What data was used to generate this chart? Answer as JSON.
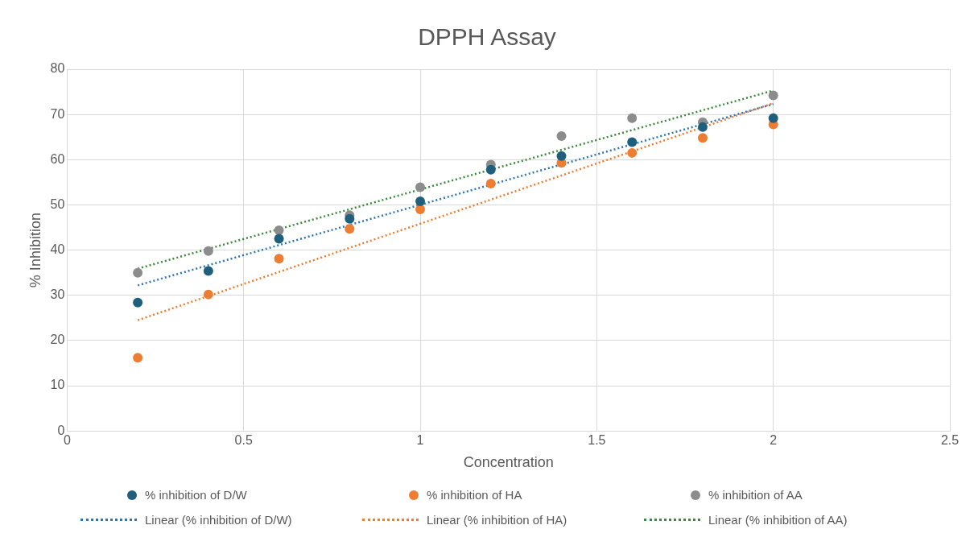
{
  "chart_data": {
    "type": "scatter",
    "title": "DPPH Assay",
    "xlabel": "Concentration",
    "ylabel": "% Inhibition",
    "xlim": [
      0,
      2.5
    ],
    "xticks": [
      0,
      0.5,
      1,
      1.5,
      2,
      2.5
    ],
    "ylim": [
      0,
      80
    ],
    "yticks": [
      0,
      10,
      20,
      30,
      40,
      50,
      60,
      70,
      80
    ],
    "grid": true,
    "legend": "bottom",
    "marker": "circle",
    "series": [
      {
        "name": "% inhibition of D/W",
        "color": "#1f5f7e",
        "x": [
          0.2,
          0.4,
          0.6,
          0.8,
          1,
          1.2,
          1.4,
          1.6,
          1.8,
          2
        ],
        "values": [
          28.4,
          35.4,
          42.5,
          46.9,
          50.8,
          57.8,
          60.8,
          63.9,
          67.2,
          69.2
        ]
      },
      {
        "name": "% inhibition of HA",
        "color": "#ed7d31",
        "x": [
          0.2,
          0.4,
          0.6,
          0.8,
          1,
          1.2,
          1.4,
          1.6,
          1.8,
          2
        ],
        "values": [
          16.2,
          30.2,
          38.1,
          44.7,
          49.0,
          54.7,
          59.3,
          61.5,
          64.8,
          67.8
        ]
      },
      {
        "name": "% inhibition of AA",
        "color": "#8c8c8c",
        "x": [
          0.2,
          0.4,
          0.6,
          0.8,
          1,
          1.2,
          1.4,
          1.6,
          1.8,
          2
        ],
        "values": [
          35.0,
          39.8,
          44.4,
          47.7,
          53.9,
          58.9,
          65.2,
          69.2,
          68.3,
          74.2
        ]
      },
      {
        "name": "Linear (% inhibition of D/W)",
        "type": "line",
        "line_style": "dotted",
        "marker": "none",
        "color": "#2e75b6",
        "x": [
          0.2,
          2
        ],
        "values": [
          32.2,
          72.3
        ]
      },
      {
        "name": "Linear (% inhibition of HA)",
        "type": "line",
        "line_style": "dotted",
        "marker": "none",
        "color": "#ed7d31",
        "x": [
          0.2,
          2
        ],
        "values": [
          24.5,
          72.5
        ]
      },
      {
        "name": "Linear (% inhibition of AA)",
        "type": "line",
        "line_style": "dotted",
        "marker": "none",
        "color": "#3a8a3a",
        "x": [
          0.2,
          2
        ],
        "values": [
          35.9,
          75.3
        ]
      }
    ]
  }
}
